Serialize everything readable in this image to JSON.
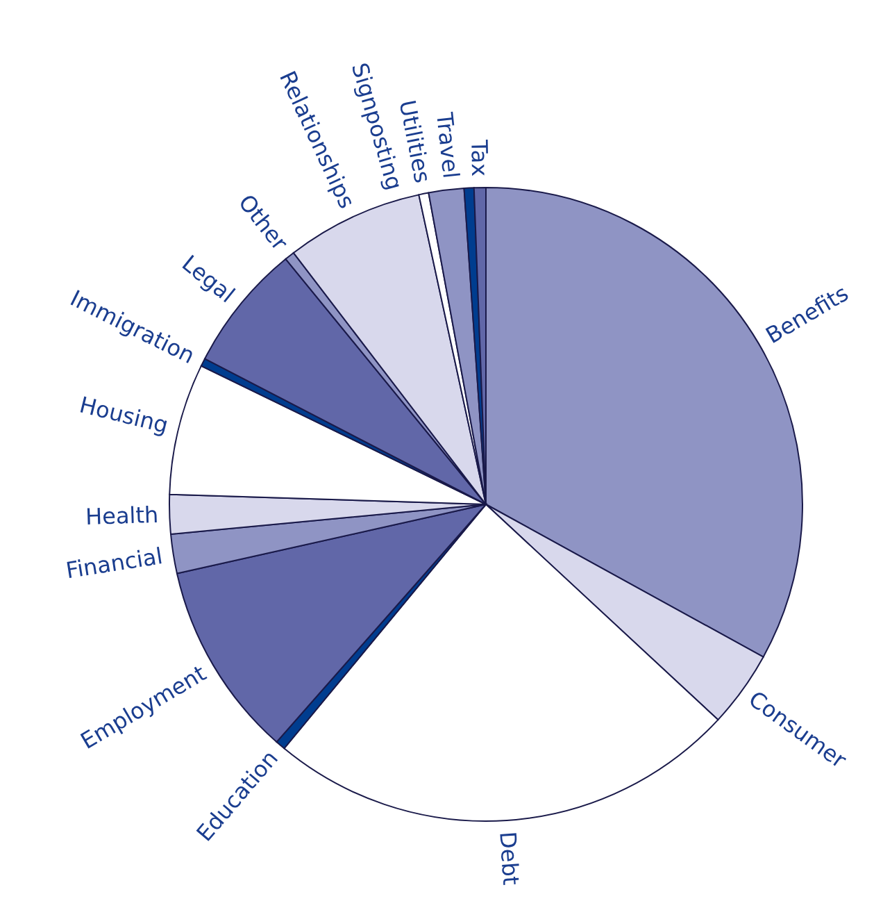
{
  "chart_data": {
    "type": "pie",
    "categories": [
      "Benefits",
      "Consumer",
      "Debt",
      "Education",
      "Employment",
      "Financial",
      "Health",
      "Housing",
      "Immigration",
      "Legal",
      "Other",
      "Relationships",
      "Signposting",
      "Utilities",
      "Travel",
      "Tax"
    ],
    "values": [
      33.0,
      3.9,
      24.1,
      0.5,
      10,
      2,
      2,
      6.7,
      0.4,
      6.5,
      0.5,
      7,
      0.5,
      1.8,
      0.5,
      0.6
    ],
    "colors": [
      "#8f94c4",
      "#d8d8ec",
      "#ffffff",
      "#003d8f",
      "#6167a8",
      "#8f94c4",
      "#d8d8ec",
      "#ffffff",
      "#003d8f",
      "#6167a8",
      "#8f94c4",
      "#d8d8ec",
      "#ffffff",
      "#8f94c4",
      "#003d8f",
      "#6167a8"
    ],
    "legend": false
  }
}
